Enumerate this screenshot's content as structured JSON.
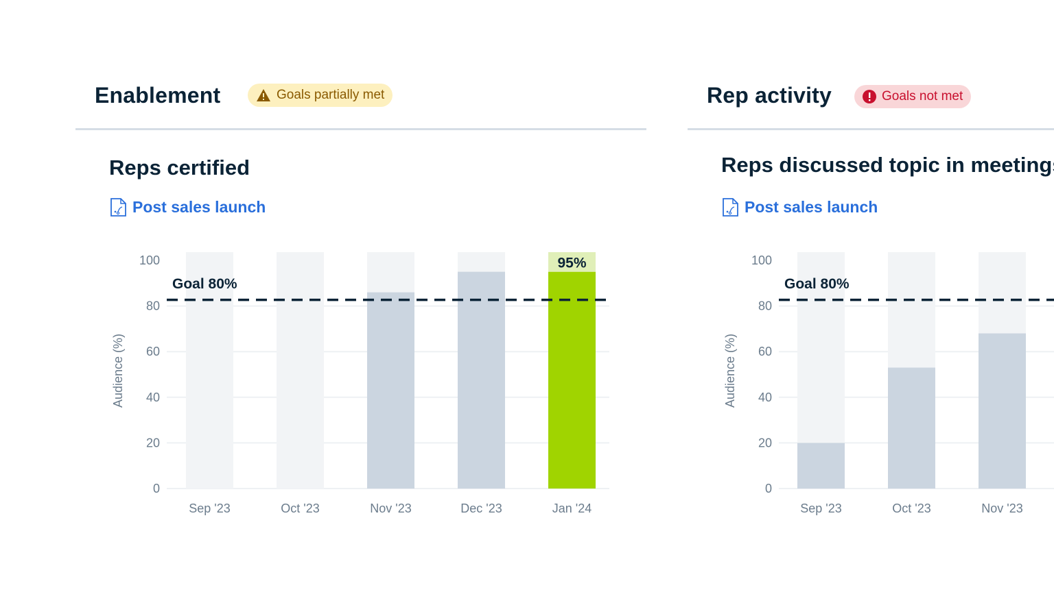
{
  "sections": [
    {
      "title": "Enablement",
      "badge": {
        "label": "Goals partially met",
        "icon": "warning-triangle-icon",
        "status": "partial",
        "bg": "#fdf0bf",
        "color": "#8a5a00"
      },
      "chart_title": "Reps certified",
      "link": {
        "label": "Post sales launch",
        "icon": "playbook-document-icon"
      }
    },
    {
      "title": "Rep activity",
      "badge": {
        "label": "Goals not met",
        "icon": "exclamation-circle-icon",
        "status": "not-met",
        "bg": "#f9d6d8",
        "color": "#c8102e"
      },
      "chart_title": "Reps discussed topic in meetings",
      "link": {
        "label": "Post sales launch",
        "icon": "playbook-document-icon"
      }
    }
  ],
  "colors": {
    "track": "#f2f4f6",
    "bar": "#cbd5e0",
    "goal_met": "#a0d400",
    "goal_met_label_bg": "#e0efb8",
    "goal_line": "#0b2336",
    "link": "#2a6fdb"
  },
  "chart_data": [
    {
      "type": "bar",
      "title": "Reps certified",
      "ylabel": "Audience (%)",
      "ylim": [
        0,
        100
      ],
      "yticks": [
        "0",
        "20",
        "40",
        "60",
        "80",
        "100"
      ],
      "categories": [
        "Sep '23",
        "Oct '23",
        "Nov '23",
        "Dec '23",
        "Jan '24"
      ],
      "values": [
        0,
        0,
        86,
        95,
        95
      ],
      "highlight": {
        "index": 4,
        "label": "95%"
      },
      "goal": {
        "value": 80,
        "label": "Goal 80%"
      },
      "grid": true
    },
    {
      "type": "bar",
      "title": "Reps discussed topic in meetings",
      "ylabel": "Audience (%)",
      "ylim": [
        0,
        100
      ],
      "yticks": [
        "0",
        "20",
        "40",
        "60",
        "80",
        "100"
      ],
      "categories": [
        "Sep '23",
        "Oct '23",
        "Nov '23"
      ],
      "values": [
        20,
        53,
        68
      ],
      "goal": {
        "value": 80,
        "label": "Goal 80%"
      },
      "grid": true
    }
  ]
}
